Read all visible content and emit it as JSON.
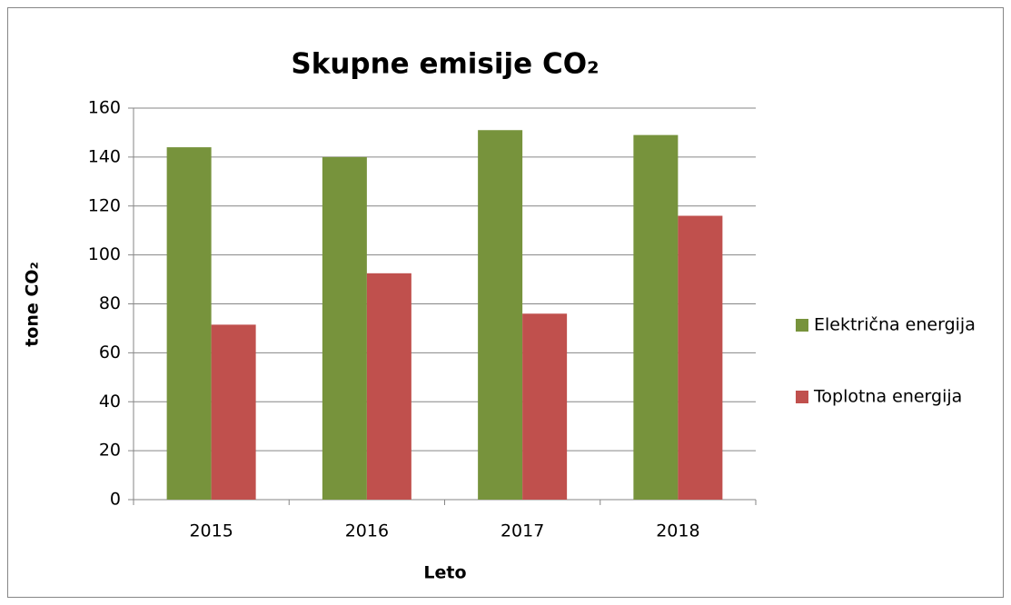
{
  "chart_data": {
    "type": "bar",
    "title": "Skupne emisije CO₂",
    "x_label": "Leto",
    "y_label": "tone CO₂",
    "categories": [
      "2015",
      "2016",
      "2017",
      "2018"
    ],
    "series": [
      {
        "name": "Električna energija",
        "color": "#77933c",
        "values": [
          144,
          140,
          151,
          149
        ]
      },
      {
        "name": "Toplotna energija",
        "color": "#c0504d",
        "values": [
          71.5,
          92.5,
          76,
          116
        ]
      }
    ],
    "ylim": [
      0,
      160
    ],
    "yticks": [
      0,
      20,
      40,
      60,
      80,
      100,
      120,
      140,
      160
    ],
    "grid": true,
    "legend": "right"
  }
}
